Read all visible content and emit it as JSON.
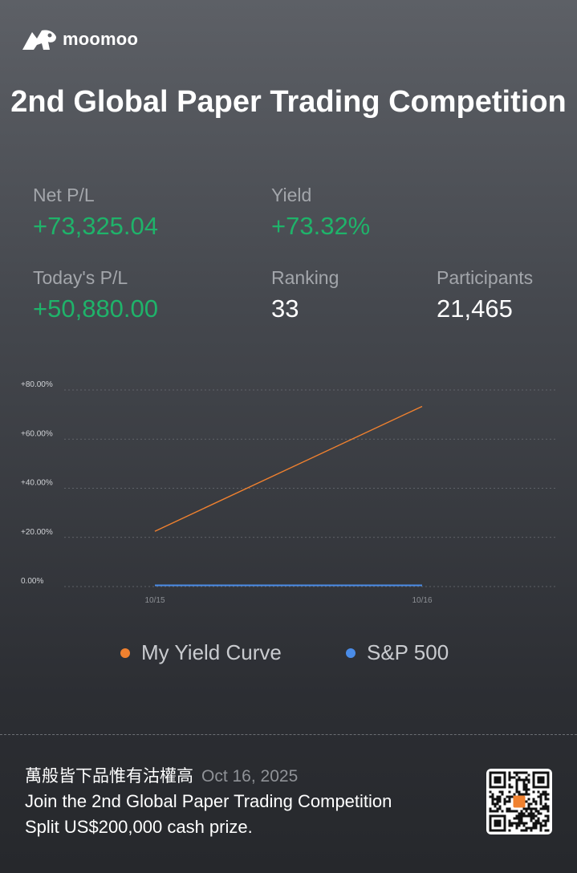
{
  "brand": {
    "name": "moomoo"
  },
  "title": "2nd Global Paper Trading Competition",
  "stats": {
    "net_pl": {
      "label": "Net P/L",
      "value": "+73,325.04"
    },
    "yield": {
      "label": "Yield",
      "value": "+73.32%"
    },
    "today_pl": {
      "label": "Today's P/L",
      "value": "+50,880.00"
    },
    "ranking": {
      "label": "Ranking",
      "value": "33"
    },
    "participants": {
      "label": "Participants",
      "value": "21,465"
    }
  },
  "colors": {
    "positive": "#1fb36a",
    "my_yield_curve": "#f0812f",
    "sp500": "#4a8ce8"
  },
  "chart_data": {
    "type": "line",
    "categories": [
      "10/15",
      "10/16"
    ],
    "series": [
      {
        "name": "My Yield Curve",
        "values": [
          22.5,
          73.32
        ]
      },
      {
        "name": "S&P 500",
        "values": [
          0.5,
          0.5
        ]
      }
    ],
    "yticks": [
      "+80.00%",
      "+60.00%",
      "+40.00%",
      "+20.00%",
      "0.00%"
    ],
    "ylim": [
      0,
      80
    ],
    "grid": true,
    "legend_position": "bottom"
  },
  "footer": {
    "user": "萬般皆下品惟有沽權高",
    "date": "Oct 16, 2025",
    "line1": "Join the 2nd Global Paper Trading Competition",
    "line2": "Split US$200,000 cash prize."
  }
}
